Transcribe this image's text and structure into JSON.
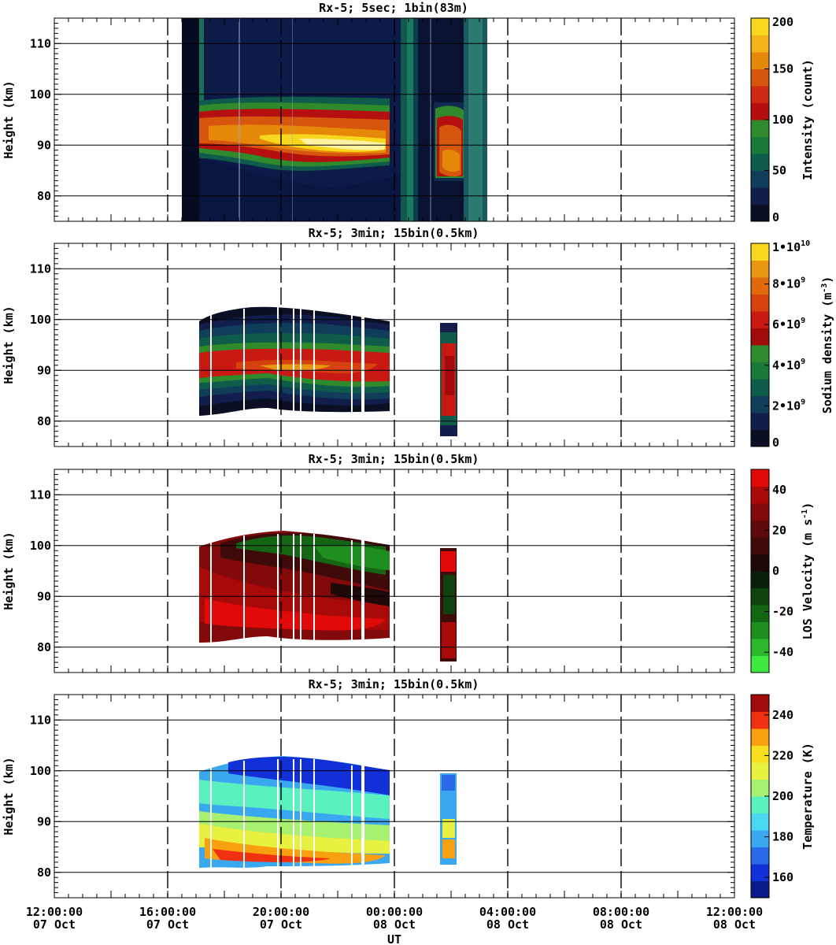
{
  "x_axis": {
    "label": "UT",
    "ticks": [
      {
        "time": "12:00:00",
        "date": "07 Oct"
      },
      {
        "time": "16:00:00",
        "date": "07 Oct"
      },
      {
        "time": "20:00:00",
        "date": "07 Oct"
      },
      {
        "time": "00:00:00",
        "date": "08 Oct"
      },
      {
        "time": "04:00:00",
        "date": "08 Oct"
      },
      {
        "time": "08:00:00",
        "date": "08 Oct"
      },
      {
        "time": "12:00:00",
        "date": "08 Oct"
      }
    ]
  },
  "chart_data": [
    {
      "type": "heatmap",
      "title": "Rx-5;  5sec; 1bin(83m)",
      "ylabel": "Height (km)",
      "xlabel": "UT",
      "ylim": [
        75,
        115
      ],
      "y_ticks": [
        "80",
        "90",
        "100",
        "110"
      ],
      "grid": true,
      "colorbar": {
        "label": "Intensity (count)",
        "range": [
          0,
          200
        ],
        "tick_labels": [
          "0",
          "50",
          "100",
          "150",
          "200"
        ],
        "colors": [
          "#0a0f24",
          "#111d4a",
          "#0f3d5a",
          "#0f5c4a",
          "#1a7a3a",
          "#2e8a2a",
          "#b50f0f",
          "#cc2a12",
          "#d6560e",
          "#e6880a",
          "#f2b418",
          "#f8d81e"
        ]
      },
      "data_extent_hours": [
        16.5,
        27.2
      ]
    },
    {
      "type": "heatmap",
      "title": "Rx-5; 3min; 15bin(0.5km)",
      "ylabel": "Height (km)",
      "xlabel": "UT",
      "ylim": [
        75,
        115
      ],
      "y_ticks": [
        "80",
        "90",
        "100",
        "110"
      ],
      "grid": true,
      "colorbar": {
        "label": "Sodium density (m",
        "label_sup": "-3",
        "label_end": ")",
        "range": [
          0,
          10000000000
        ],
        "tick_labels": [
          {
            "text": "0",
            "sup": ""
          },
          {
            "text": "2•10",
            "sup": "9"
          },
          {
            "text": "4•10",
            "sup": "9"
          },
          {
            "text": "6•10",
            "sup": "9"
          },
          {
            "text": "8•10",
            "sup": "9"
          },
          {
            "text": "1•10",
            "sup": "10"
          }
        ],
        "colors": [
          "#0a0f24",
          "#111d4a",
          "#0f3d5a",
          "#0f5c4a",
          "#1a7a3a",
          "#2e8a2a",
          "#a00a0a",
          "#c81a12",
          "#d6420e",
          "#e06a0c",
          "#e89612",
          "#f8d81e"
        ]
      },
      "data_extent_hours": [
        17.2,
        26.1
      ]
    },
    {
      "type": "heatmap",
      "title": "Rx-5; 3min; 15bin(0.5km)",
      "ylabel": "Height (km)",
      "xlabel": "UT",
      "ylim": [
        75,
        115
      ],
      "y_ticks": [
        "80",
        "90",
        "100",
        "110"
      ],
      "grid": true,
      "colorbar": {
        "label": "LOS Velocity (m s",
        "label_sup": "-1",
        "label_end": ")",
        "range": [
          -50,
          50
        ],
        "tick_labels": [
          "-40",
          "-20",
          "0",
          "20",
          "40"
        ],
        "colors": [
          "#3ee83e",
          "#2cb82c",
          "#1e8e1e",
          "#146614",
          "#0e430e",
          "#0a1f0a",
          "#1e0808",
          "#3e0a0a",
          "#5e0a0a",
          "#820a0a",
          "#a80a0a",
          "#e00a0a"
        ]
      },
      "data_extent_hours": [
        17.2,
        26.1
      ]
    },
    {
      "type": "heatmap",
      "title": "Rx-5; 3min; 15bin(0.5km)",
      "ylabel": "Height (km)",
      "xlabel": "UT",
      "ylim": [
        75,
        115
      ],
      "y_ticks": [
        "80",
        "90",
        "100",
        "110"
      ],
      "grid": true,
      "colorbar": {
        "label": "Temperature (K)",
        "range": [
          150,
          250
        ],
        "tick_labels": [
          "160",
          "180",
          "200",
          "220",
          "240"
        ],
        "colors": [
          "#0a1a8a",
          "#1230d8",
          "#2a6ae8",
          "#3aa8f0",
          "#4ad8f0",
          "#5af0c0",
          "#a8f070",
          "#e8f040",
          "#f8e020",
          "#f8a010",
          "#f03010",
          "#a00a0a"
        ]
      },
      "data_extent_hours": [
        17.2,
        26.1
      ]
    }
  ]
}
